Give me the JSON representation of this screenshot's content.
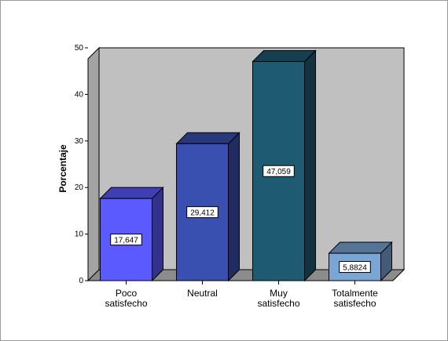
{
  "chart_data": {
    "type": "bar",
    "ylabel": "Porcentaje",
    "xlabel": "",
    "title": "",
    "categories": [
      "Poco\nsatisfecho",
      "Neutral",
      "Muy\nsatisfecho",
      "Totalmente\nsatisfecho"
    ],
    "values": [
      17.647,
      29.412,
      47.059,
      5.8824
    ],
    "data_labels": [
      "17,647",
      "29,412",
      "47,059",
      "5,8824"
    ],
    "yticks": [
      0,
      10,
      20,
      30,
      40,
      50
    ],
    "ylim": [
      0,
      50
    ],
    "style": "3d",
    "colors": {
      "bars": [
        "#5a5aff",
        "#3a50b0",
        "#1e5a72",
        "#7aa6d6"
      ],
      "wall": "#c0c0c0",
      "floor": "#8c8c8c"
    }
  }
}
